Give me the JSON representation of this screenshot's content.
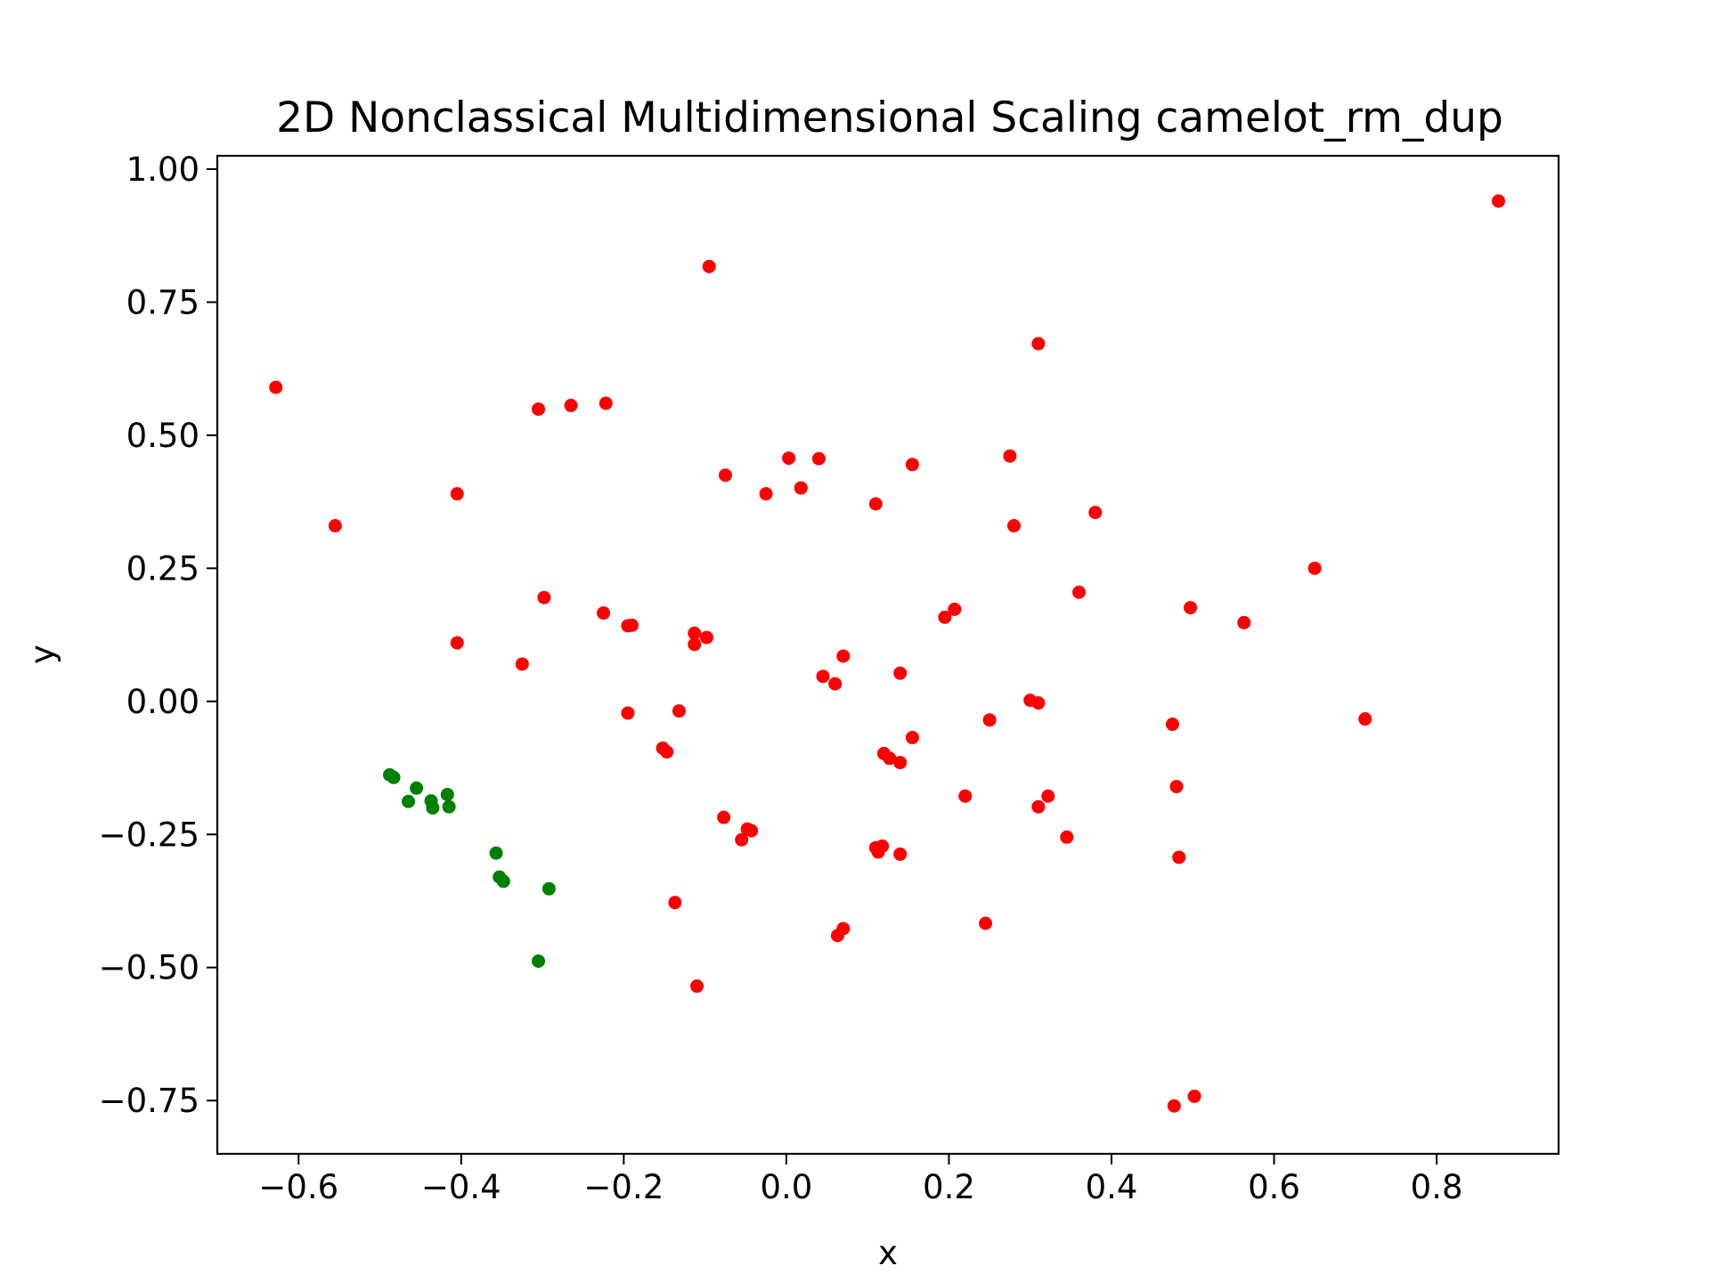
{
  "chart_data": {
    "type": "scatter",
    "title": "2D Nonclassical Multidimensional Scaling camelot_rm_dup",
    "xlabel": "x",
    "ylabel": "y",
    "xlim": [
      -0.7,
      0.95
    ],
    "ylim": [
      -0.85,
      1.025
    ],
    "x_ticks": [
      -0.6,
      -0.4,
      -0.2,
      0.0,
      0.2,
      0.4,
      0.6,
      0.8
    ],
    "x_tick_labels": [
      "−0.6",
      "−0.4",
      "−0.2",
      "0.0",
      "0.2",
      "0.4",
      "0.6",
      "0.8"
    ],
    "y_ticks": [
      1.0,
      0.75,
      0.5,
      0.25,
      0.0,
      -0.25,
      -0.5,
      -0.75
    ],
    "y_tick_labels": [
      "1.00",
      "0.75",
      "0.50",
      "0.25",
      "0.00",
      "−0.25",
      "−0.50",
      "−0.75"
    ],
    "grid": false,
    "legend": "none",
    "series": [
      {
        "color": "#ff0000",
        "points": [
          [
            0.876,
            0.94
          ],
          [
            -0.095,
            0.817
          ],
          [
            0.31,
            0.672
          ],
          [
            -0.628,
            0.59
          ],
          [
            -0.305,
            0.549
          ],
          [
            -0.265,
            0.556
          ],
          [
            -0.222,
            0.56
          ],
          [
            -0.555,
            0.33
          ],
          [
            -0.405,
            0.39
          ],
          [
            -0.075,
            0.425
          ],
          [
            0.003,
            0.457
          ],
          [
            0.04,
            0.456
          ],
          [
            0.018,
            0.401
          ],
          [
            -0.025,
            0.39
          ],
          [
            0.11,
            0.371
          ],
          [
            0.155,
            0.445
          ],
          [
            0.275,
            0.461
          ],
          [
            0.28,
            0.33
          ],
          [
            0.38,
            0.355
          ],
          [
            0.65,
            0.25
          ],
          [
            -0.405,
            0.11
          ],
          [
            -0.298,
            0.195
          ],
          [
            -0.325,
            0.07
          ],
          [
            -0.225,
            0.166
          ],
          [
            -0.195,
            0.142
          ],
          [
            -0.19,
            0.143
          ],
          [
            -0.113,
            0.128
          ],
          [
            -0.098,
            0.12
          ],
          [
            -0.113,
            0.107
          ],
          [
            0.07,
            0.085
          ],
          [
            0.045,
            0.047
          ],
          [
            0.06,
            0.033
          ],
          [
            0.14,
            0.053
          ],
          [
            0.195,
            0.158
          ],
          [
            0.207,
            0.173
          ],
          [
            0.36,
            0.205
          ],
          [
            0.497,
            0.176
          ],
          [
            0.563,
            0.148
          ],
          [
            -0.195,
            -0.022
          ],
          [
            -0.132,
            -0.018
          ],
          [
            0.3,
            0.002
          ],
          [
            0.31,
            -0.003
          ],
          [
            0.25,
            -0.035
          ],
          [
            0.155,
            -0.068
          ],
          [
            0.475,
            -0.043
          ],
          [
            0.712,
            -0.033
          ],
          [
            -0.152,
            -0.088
          ],
          [
            -0.147,
            -0.095
          ],
          [
            0.12,
            -0.098
          ],
          [
            0.127,
            -0.107
          ],
          [
            0.14,
            -0.115
          ],
          [
            -0.077,
            -0.218
          ],
          [
            -0.048,
            -0.24
          ],
          [
            -0.043,
            -0.243
          ],
          [
            -0.055,
            -0.26
          ],
          [
            0.22,
            -0.178
          ],
          [
            0.322,
            -0.178
          ],
          [
            0.31,
            -0.198
          ],
          [
            0.345,
            -0.255
          ],
          [
            0.48,
            -0.16
          ],
          [
            0.483,
            -0.293
          ],
          [
            0.11,
            -0.275
          ],
          [
            0.118,
            -0.272
          ],
          [
            0.113,
            -0.283
          ],
          [
            0.14,
            -0.287
          ],
          [
            -0.137,
            -0.378
          ],
          [
            0.07,
            -0.427
          ],
          [
            0.063,
            -0.44
          ],
          [
            0.245,
            -0.417
          ],
          [
            -0.11,
            -0.535
          ],
          [
            0.477,
            -0.76
          ],
          [
            0.502,
            -0.742
          ]
        ]
      },
      {
        "color": "#008000",
        "points": [
          [
            -0.488,
            -0.138
          ],
          [
            -0.483,
            -0.143
          ],
          [
            -0.455,
            -0.163
          ],
          [
            -0.465,
            -0.188
          ],
          [
            -0.437,
            -0.187
          ],
          [
            -0.435,
            -0.2
          ],
          [
            -0.417,
            -0.175
          ],
          [
            -0.415,
            -0.198
          ],
          [
            -0.357,
            -0.285
          ],
          [
            -0.353,
            -0.33
          ],
          [
            -0.348,
            -0.338
          ],
          [
            -0.292,
            -0.352
          ],
          [
            -0.305,
            -0.488
          ]
        ]
      }
    ]
  }
}
